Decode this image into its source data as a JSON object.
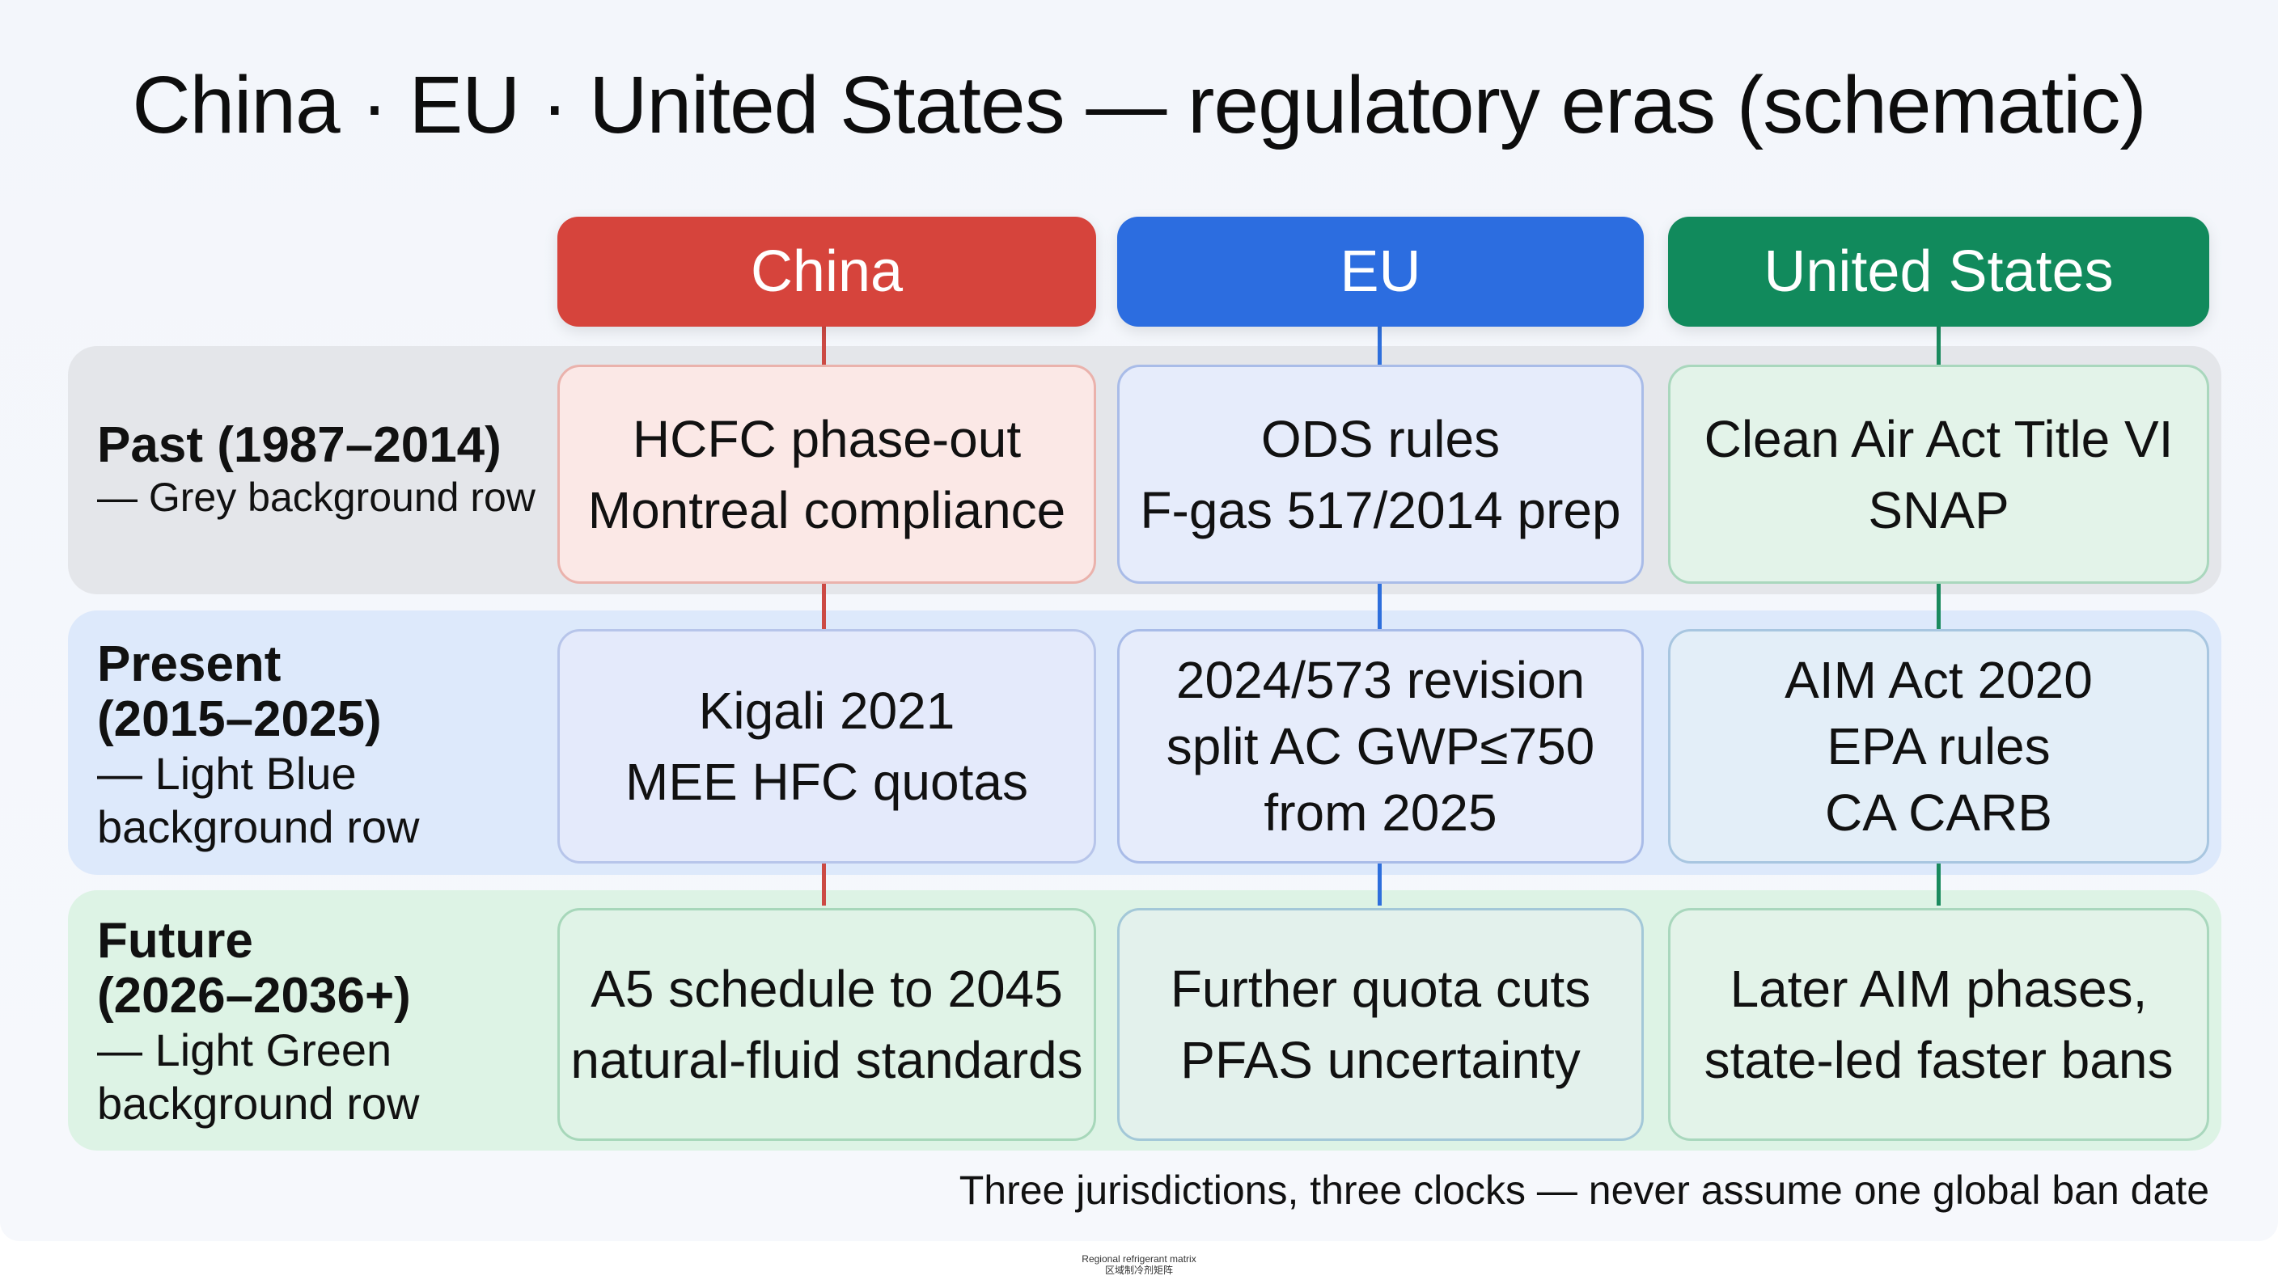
{
  "title": "China · EU · United States — regulatory eras (schematic)",
  "columns": [
    {
      "label": "China",
      "color": "#d6443c"
    },
    {
      "label": "EU",
      "color": "#2c6de0"
    },
    {
      "label": "United States",
      "color": "#118a5c"
    }
  ],
  "rows": [
    {
      "name": "Past (1987–2014)",
      "description": "— Grey background row",
      "band_color": "#e4e6ea",
      "cells": [
        [
          "HCFC phase-out",
          "Montreal compliance"
        ],
        [
          "ODS rules",
          "F-gas 517/2014 prep"
        ],
        [
          "Clean Air Act Title VI",
          "SNAP"
        ]
      ]
    },
    {
      "name_lines": [
        "Present",
        "(2015–2025)"
      ],
      "description_lines": [
        "— Light Blue",
        "background row"
      ],
      "band_color": "#dde9fb",
      "cells": [
        [
          "Kigali 2021",
          "MEE HFC quotas"
        ],
        [
          "2024/573 revision",
          "split AC GWP≤750",
          "from 2025"
        ],
        [
          "AIM Act 2020",
          "EPA rules",
          "CA CARB"
        ]
      ]
    },
    {
      "name_lines": [
        "Future",
        "(2026–2036+)"
      ],
      "description_lines": [
        "— Light Green",
        "background row"
      ],
      "band_color": "#ddf3e5",
      "cells": [
        [
          "A5 schedule to 2045",
          "natural-fluid standards"
        ],
        [
          "Further quota cuts",
          "PFAS uncertainty"
        ],
        [
          "Later AIM phases,",
          "state-led faster bans"
        ]
      ]
    }
  ],
  "footnote": "Three jurisdictions, three clocks — never assume one global ban date",
  "caption": [
    "Regional refrigerant matrix",
    "区域制冷剂矩阵"
  ]
}
